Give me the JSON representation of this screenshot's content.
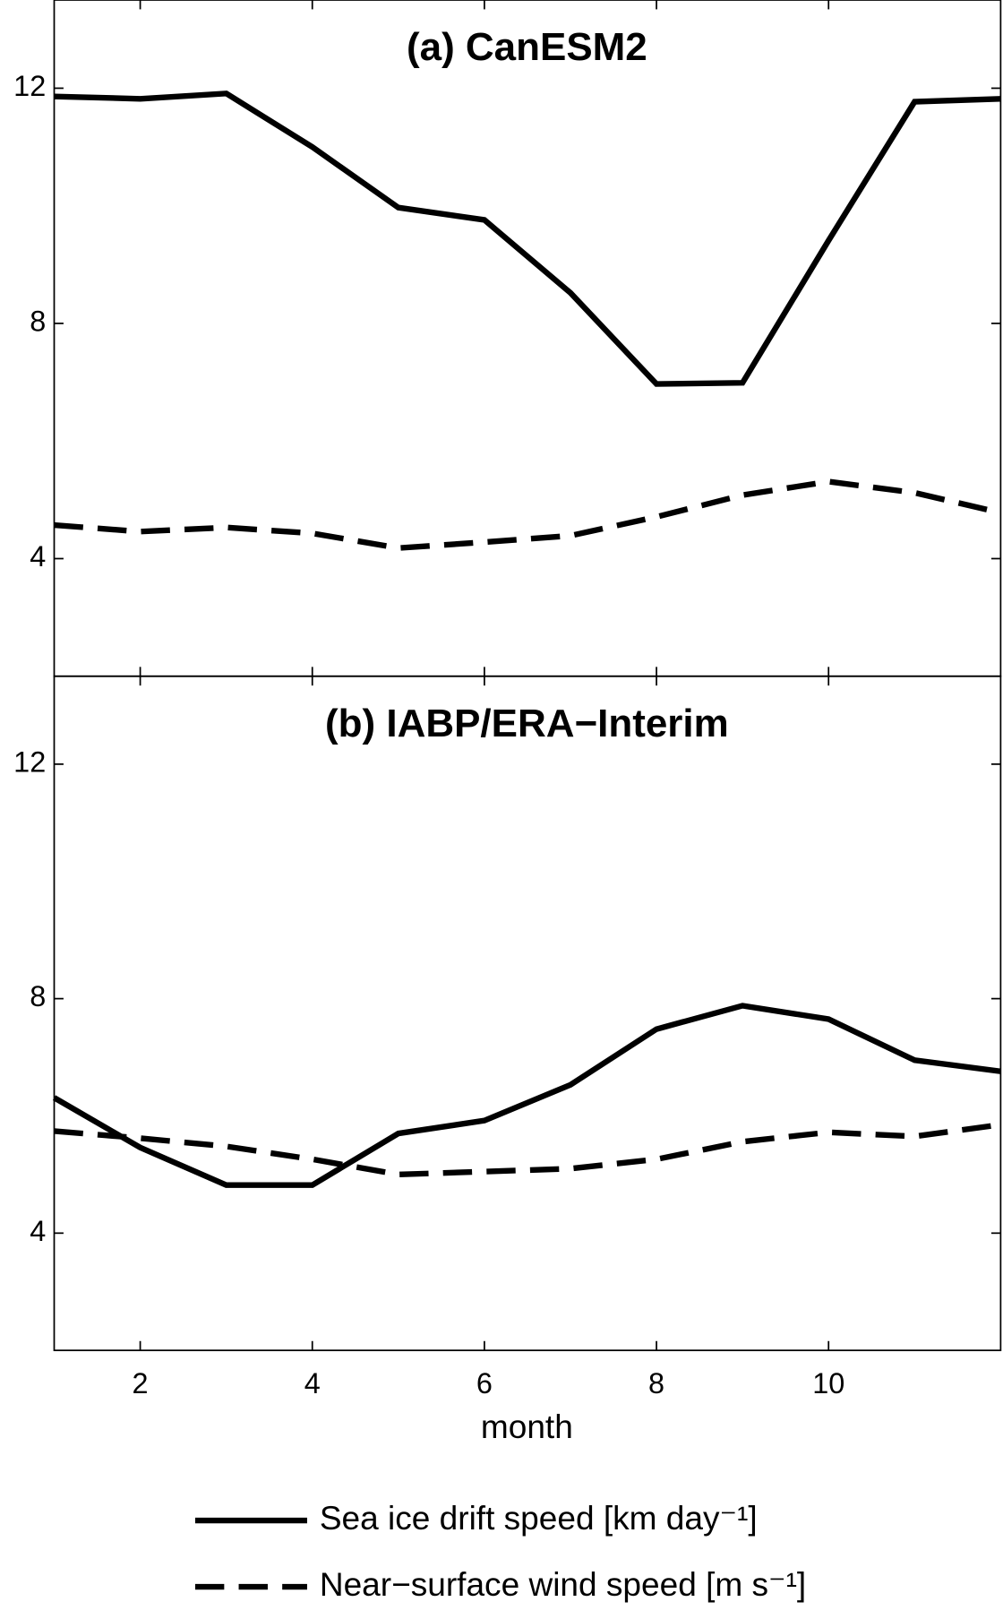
{
  "chart_data": [
    {
      "type": "line",
      "title": "(a) CanESM2",
      "x": [
        1,
        2,
        3,
        4,
        5,
        6,
        7,
        8,
        9,
        10,
        11,
        12
      ],
      "series": [
        {
          "name": "Sea ice drift speed [km day⁻¹]",
          "color": "#000000",
          "style": "solid",
          "values": [
            11.86,
            11.82,
            11.91,
            11.0,
            9.97,
            9.76,
            8.52,
            6.97,
            6.99,
            9.41,
            11.77,
            11.82
          ]
        },
        {
          "name": "Near−surface wind speed [m s⁻¹]",
          "color": "#000000",
          "style": "dashed",
          "values": [
            4.57,
            4.46,
            4.53,
            4.43,
            4.18,
            4.28,
            4.39,
            4.71,
            5.08,
            5.31,
            5.12,
            4.78
          ]
        }
      ],
      "xlim": [
        1,
        12
      ],
      "xticks": [
        2,
        4,
        6,
        8,
        10
      ],
      "ylim": [
        2,
        13.5
      ],
      "yticks": [
        4,
        8,
        12
      ],
      "grid": false
    },
    {
      "type": "line",
      "title": "(b) IABP/ERA−Interim",
      "x_label": "month",
      "x": [
        1,
        2,
        3,
        4,
        5,
        6,
        7,
        8,
        9,
        10,
        11,
        12
      ],
      "series": [
        {
          "color": "#000000",
          "style": "solid",
          "values": [
            6.31,
            5.46,
            4.82,
            4.82,
            5.7,
            5.92,
            6.53,
            7.48,
            7.88,
            7.65,
            6.95,
            6.76
          ]
        },
        {
          "color": "#000000",
          "style": "dashed",
          "values": [
            5.74,
            5.62,
            5.48,
            5.26,
            5.0,
            5.05,
            5.1,
            5.26,
            5.56,
            5.72,
            5.65,
            5.85
          ]
        }
      ],
      "xlim": [
        1,
        12
      ],
      "xticks": [
        2,
        4,
        6,
        8,
        10
      ],
      "ylim": [
        2,
        13.5
      ],
      "yticks": [
        4,
        8,
        12
      ],
      "grid": false
    }
  ]
}
